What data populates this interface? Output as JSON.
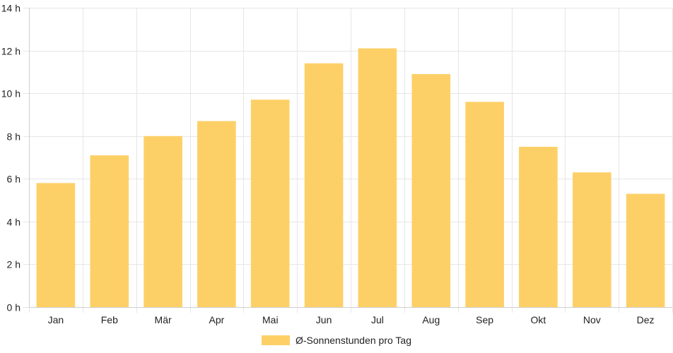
{
  "chart_data": {
    "type": "bar",
    "categories": [
      "Jan",
      "Feb",
      "Mär",
      "Apr",
      "Mai",
      "Jun",
      "Jul",
      "Aug",
      "Sep",
      "Okt",
      "Nov",
      "Dez"
    ],
    "series": [
      {
        "name": "Ø-Sonnenstunden pro Tag",
        "values": [
          5.8,
          7.1,
          8.0,
          8.7,
          9.7,
          11.4,
          12.1,
          10.9,
          9.6,
          7.5,
          6.3,
          5.3
        ],
        "color": "#fdd067"
      }
    ],
    "y_ticks": [
      "0 h",
      "2 h",
      "4 h",
      "6 h",
      "8 h",
      "10 h",
      "12 h",
      "14 h"
    ],
    "ylim": [
      0,
      14
    ],
    "grid": true,
    "legend_position": "bottom-center"
  }
}
